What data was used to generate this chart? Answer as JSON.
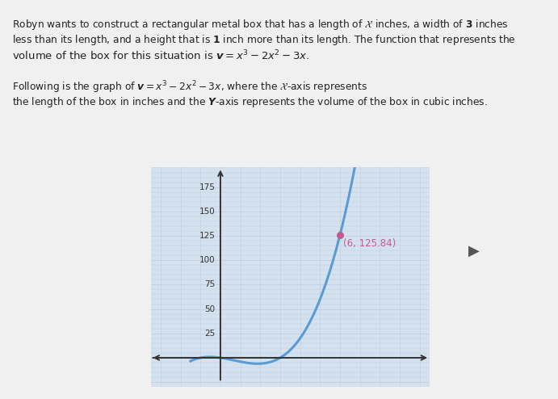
{
  "curve_color": "#5b9bd5",
  "point_color": "#c55a91",
  "point_x": 6,
  "point_y": 125.84,
  "annotation_text": "(6, 125.84)",
  "annotation_color": "#c55a91",
  "xlim": [
    -3.5,
    10.5
  ],
  "ylim": [
    -30,
    195
  ],
  "yticks": [
    25,
    50,
    75,
    100,
    125,
    150,
    175
  ],
  "grid_color": "#c0cfe0",
  "bg_color": "#d4e1ef",
  "axes_color": "#333333",
  "fig_bg": "#f0f0f0",
  "text_color": "#222222",
  "cursor_color": "#555555"
}
